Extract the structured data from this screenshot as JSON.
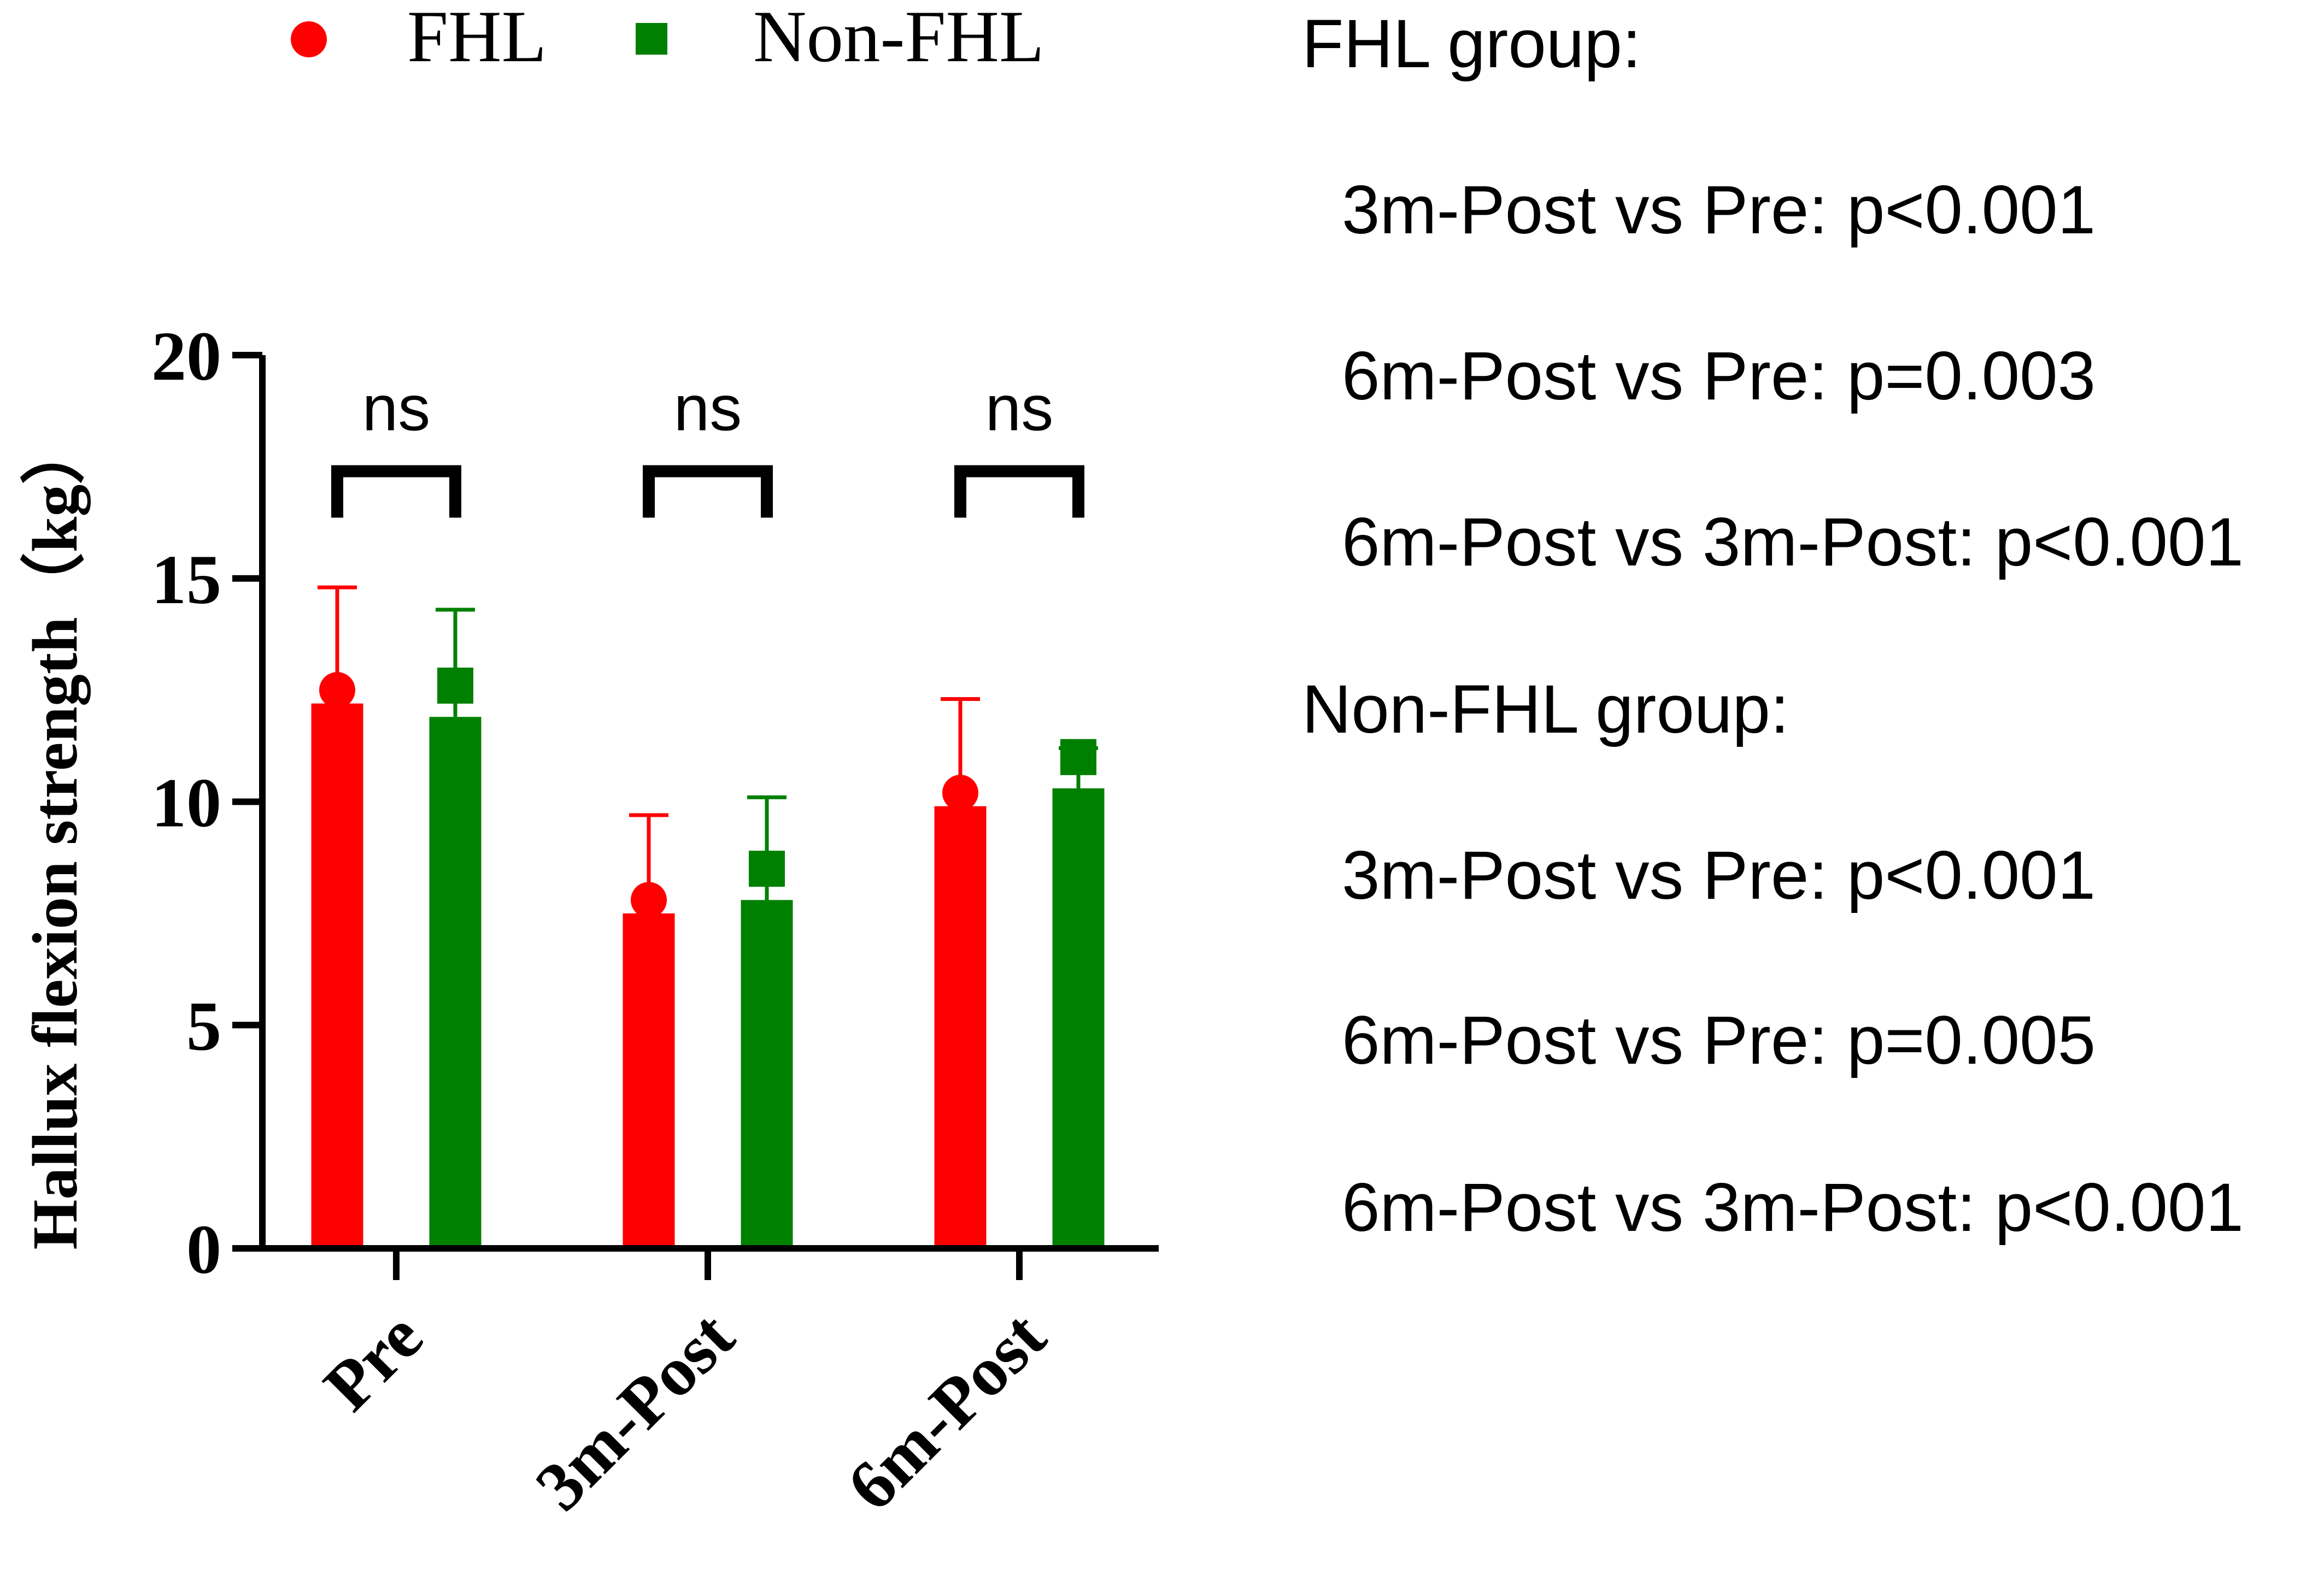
{
  "colors": {
    "FHL": "#ff0000",
    "Non-FHL": "#008000",
    "axis": "#000000"
  },
  "legend": {
    "items": [
      {
        "label": "FHL",
        "marker": "circle"
      },
      {
        "label": "Non-FHL",
        "marker": "square"
      }
    ]
  },
  "chart_data": {
    "type": "bar",
    "categories": [
      "Pre",
      "3m-Post",
      "6m-Post"
    ],
    "series": [
      {
        "name": "FHL",
        "values": [
          12.2,
          7.5,
          9.9
        ],
        "error_plus": [
          2.6,
          2.2,
          2.4
        ],
        "points": [
          12.5,
          7.8,
          10.2
        ]
      },
      {
        "name": "Non-FHL",
        "values": [
          11.9,
          7.8,
          10.3
        ],
        "error_plus": [
          2.4,
          2.3,
          0.9
        ],
        "points": [
          12.6,
          8.5,
          11.0
        ]
      }
    ],
    "ylabel": "Hallux flexion strength（kg）",
    "xlabel": "",
    "ylim": [
      0,
      20
    ],
    "yticks": [
      0,
      5,
      10,
      15,
      20
    ],
    "comparisons": [
      "ns",
      "ns",
      "ns"
    ],
    "legend_position": "top"
  },
  "stats": {
    "lines": [
      {
        "text": "FHL group:",
        "indent": false
      },
      {
        "text": "3m-Post vs Pre: p<0.001",
        "indent": true
      },
      {
        "text": "6m-Post vs Pre: p=0.003",
        "indent": true
      },
      {
        "text": "6m-Post vs 3m-Post: p<0.001",
        "indent": true
      },
      {
        "text": "Non-FHL group:",
        "indent": false
      },
      {
        "text": "3m-Post vs Pre: p<0.001",
        "indent": true
      },
      {
        "text": "6m-Post vs Pre: p=0.005",
        "indent": true
      },
      {
        "text": "6m-Post vs 3m-Post: p<0.001",
        "indent": true
      }
    ]
  }
}
